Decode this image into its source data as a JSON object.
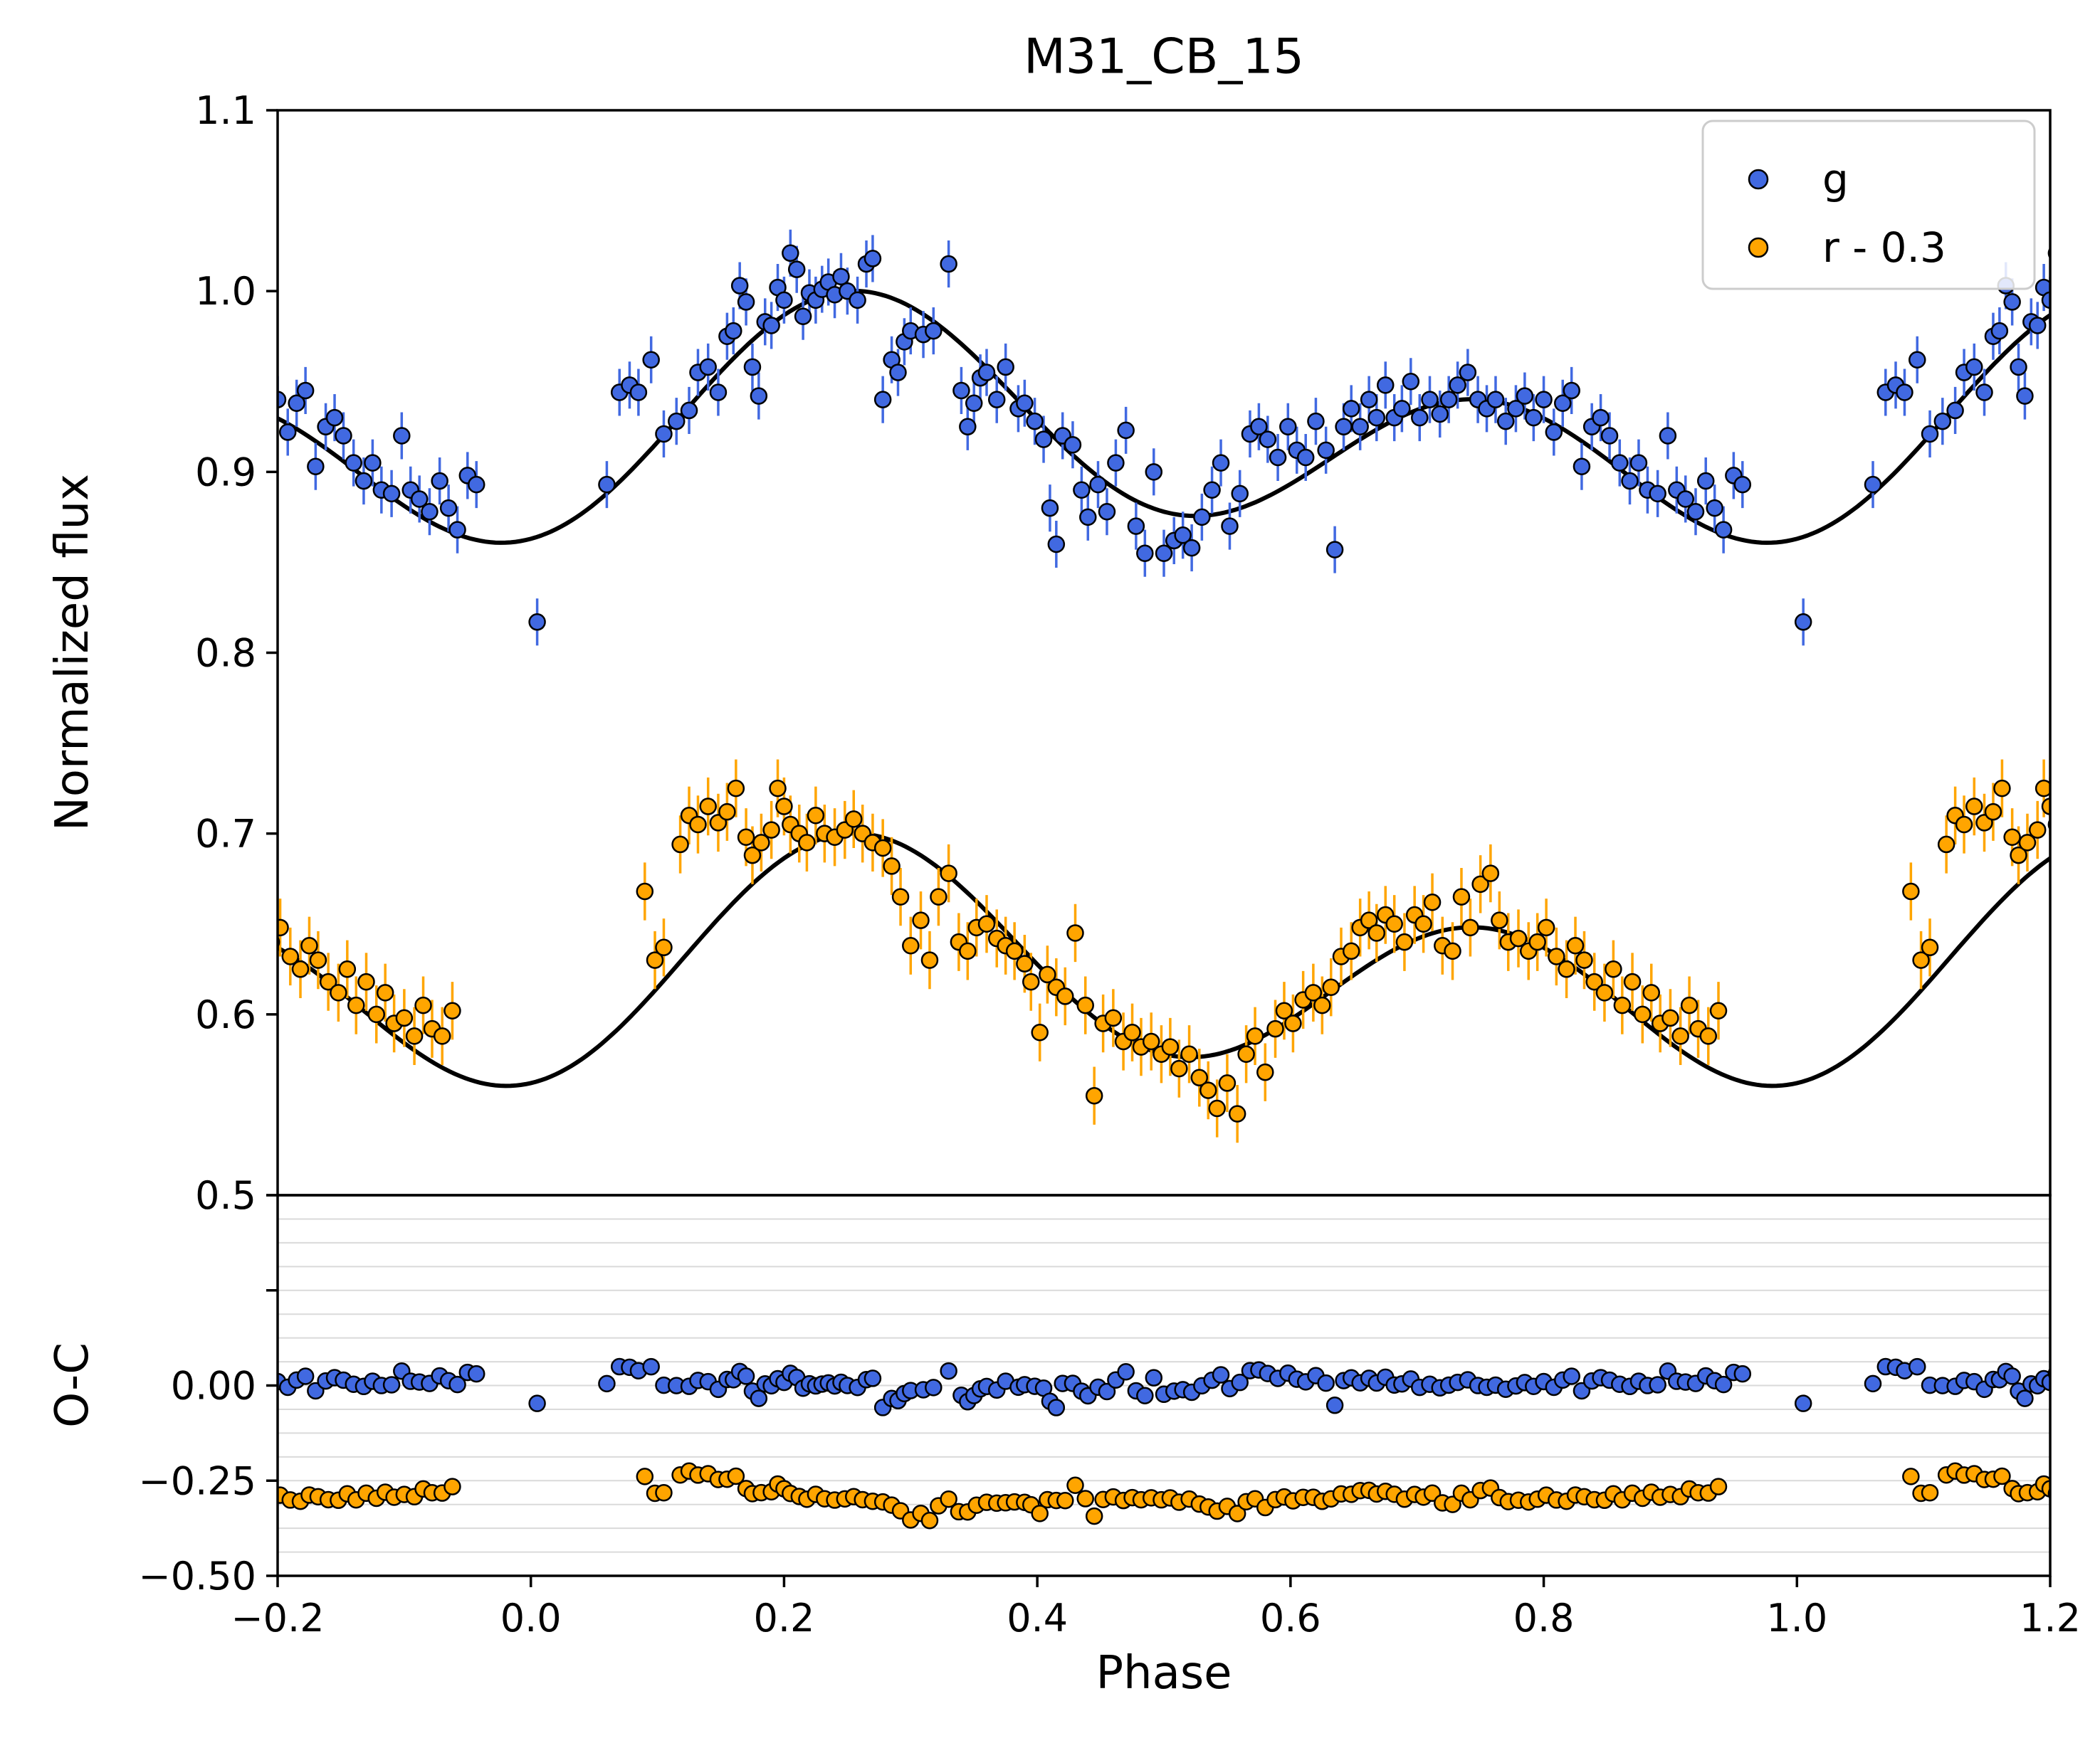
{
  "chart_data": {
    "type": "scatter",
    "title": "M31_CB_15",
    "xlabel": "Phase",
    "xlim": [
      -0.2,
      1.2
    ],
    "x_ticks": [
      {
        "v": -0.2,
        "label": "−0.2"
      },
      {
        "v": 0.0,
        "label": "0.0"
      },
      {
        "v": 0.2,
        "label": "0.2"
      },
      {
        "v": 0.4,
        "label": "0.4"
      },
      {
        "v": 0.6,
        "label": "0.6"
      },
      {
        "v": 0.8,
        "label": "0.8"
      },
      {
        "v": 1.0,
        "label": "1.0"
      },
      {
        "v": 1.2,
        "label": "1.2"
      }
    ],
    "panels": [
      {
        "name": "flux",
        "ylabel": "Normalized flux",
        "ylim": [
          0.5,
          1.1
        ],
        "y_ticks": [
          {
            "v": 1.1,
            "label": "1.1"
          },
          {
            "v": 1.0,
            "label": "1.0"
          },
          {
            "v": 0.9,
            "label": "0.9"
          },
          {
            "v": 0.8,
            "label": "0.8"
          },
          {
            "v": 0.7,
            "label": "0.7"
          },
          {
            "v": 0.6,
            "label": "0.6"
          },
          {
            "v": 0.5,
            "label": "0.5"
          }
        ]
      },
      {
        "name": "oc",
        "ylabel": "O-C",
        "ylim": [
          -0.5,
          0.5
        ],
        "y_ticks": [
          {
            "v": 0.0,
            "label": "0.00"
          },
          {
            "v": -0.25,
            "label": "−0.25"
          },
          {
            "v": -0.5,
            "label": "−0.50"
          }
        ],
        "extra_tick_values": [
          0.5,
          0.25
        ],
        "grid": {
          "step": 0.0625,
          "color": "#dadada"
        }
      }
    ],
    "legend": {
      "position": "upper right"
    },
    "model_color": "#000000",
    "fold_duplication": true,
    "series": [
      {
        "name": "g",
        "label": "g",
        "color": "#4169e1",
        "edge_color": "#000000",
        "err": 0.013,
        "residual_offset": 0,
        "model": {
          "a0": 0.92025,
          "s1": 0.03,
          "c1": -0.0075,
          "s2": 0,
          "c2": -0.04975
        },
        "points": [
          [
            0.005,
            0.817
          ],
          [
            0.06,
            0.893
          ],
          [
            0.07,
            0.944
          ],
          [
            0.078,
            0.948
          ],
          [
            0.085,
            0.944
          ],
          [
            0.095,
            0.962
          ],
          [
            0.105,
            0.921
          ],
          [
            0.115,
            0.928
          ],
          [
            0.125,
            0.934
          ],
          [
            0.132,
            0.955
          ],
          [
            0.14,
            0.958
          ],
          [
            0.148,
            0.944
          ],
          [
            0.155,
            0.975
          ],
          [
            0.16,
            0.978
          ],
          [
            0.165,
            1.003
          ],
          [
            0.17,
            0.994
          ],
          [
            0.175,
            0.958
          ],
          [
            0.18,
            0.942
          ],
          [
            0.185,
            0.983
          ],
          [
            0.19,
            0.981
          ],
          [
            0.195,
            1.002
          ],
          [
            0.2,
            0.995
          ],
          [
            0.205,
            1.021
          ],
          [
            0.21,
            1.012
          ],
          [
            0.215,
            0.986
          ],
          [
            0.22,
            0.999
          ],
          [
            0.225,
            0.995
          ],
          [
            0.23,
            1.001
          ],
          [
            0.235,
            1.005
          ],
          [
            0.24,
            0.998
          ],
          [
            0.245,
            1.008
          ],
          [
            0.25,
            1.0
          ],
          [
            0.258,
            0.995
          ],
          [
            0.265,
            1.015
          ],
          [
            0.27,
            1.018
          ],
          [
            0.278,
            0.94
          ],
          [
            0.285,
            0.962
          ],
          [
            0.29,
            0.955
          ],
          [
            0.295,
            0.972
          ],
          [
            0.3,
            0.978
          ],
          [
            0.31,
            0.976
          ],
          [
            0.318,
            0.978
          ],
          [
            0.33,
            1.015
          ],
          [
            0.34,
            0.945
          ],
          [
            0.345,
            0.925
          ],
          [
            0.35,
            0.938
          ],
          [
            0.355,
            0.952
          ],
          [
            0.36,
            0.955
          ],
          [
            0.368,
            0.94
          ],
          [
            0.375,
            0.958
          ],
          [
            0.385,
            0.935
          ],
          [
            0.39,
            0.938
          ],
          [
            0.398,
            0.928
          ],
          [
            0.405,
            0.918
          ],
          [
            0.41,
            0.88
          ],
          [
            0.415,
            0.86
          ],
          [
            0.42,
            0.92
          ],
          [
            0.428,
            0.915
          ],
          [
            0.435,
            0.89
          ],
          [
            0.44,
            0.875
          ],
          [
            0.448,
            0.893
          ],
          [
            0.455,
            0.878
          ],
          [
            0.462,
            0.905
          ],
          [
            0.47,
            0.923
          ],
          [
            0.478,
            0.87
          ],
          [
            0.485,
            0.855
          ],
          [
            0.492,
            0.9
          ],
          [
            0.5,
            0.855
          ],
          [
            0.508,
            0.862
          ],
          [
            0.515,
            0.865
          ],
          [
            0.522,
            0.858
          ],
          [
            0.53,
            0.875
          ],
          [
            0.538,
            0.89
          ],
          [
            0.545,
            0.905
          ],
          [
            0.552,
            0.87
          ],
          [
            0.56,
            0.888
          ],
          [
            0.568,
            0.921
          ],
          [
            0.575,
            0.925
          ],
          [
            0.582,
            0.918
          ],
          [
            0.59,
            0.908
          ],
          [
            0.598,
            0.925
          ],
          [
            0.605,
            0.912
          ],
          [
            0.612,
            0.908
          ],
          [
            0.62,
            0.928
          ],
          [
            0.628,
            0.912
          ],
          [
            0.635,
            0.857
          ],
          [
            0.642,
            0.925
          ],
          [
            0.648,
            0.935
          ],
          [
            0.655,
            0.925
          ],
          [
            0.662,
            0.94
          ],
          [
            0.668,
            0.93
          ],
          [
            0.675,
            0.948
          ],
          [
            0.682,
            0.93
          ],
          [
            0.688,
            0.935
          ],
          [
            0.695,
            0.95
          ],
          [
            0.702,
            0.93
          ],
          [
            0.71,
            0.94
          ],
          [
            0.718,
            0.932
          ],
          [
            0.725,
            0.94
          ],
          [
            0.732,
            0.948
          ],
          [
            0.74,
            0.955
          ],
          [
            0.748,
            0.94
          ],
          [
            0.755,
            0.935
          ],
          [
            0.762,
            0.94
          ],
          [
            0.77,
            0.928
          ],
          [
            0.778,
            0.935
          ],
          [
            0.785,
            0.942
          ],
          [
            0.792,
            0.93
          ],
          [
            0.8,
            0.94
          ],
          [
            0.808,
            0.922
          ],
          [
            0.815,
            0.938
          ],
          [
            0.822,
            0.945
          ],
          [
            0.83,
            0.903
          ],
          [
            0.838,
            0.925
          ],
          [
            0.845,
            0.93
          ],
          [
            0.852,
            0.92
          ],
          [
            0.86,
            0.905
          ],
          [
            0.868,
            0.895
          ],
          [
            0.875,
            0.905
          ],
          [
            0.882,
            0.89
          ],
          [
            0.89,
            0.888
          ],
          [
            0.898,
            0.92
          ],
          [
            0.905,
            0.89
          ],
          [
            0.912,
            0.885
          ],
          [
            0.92,
            0.878
          ],
          [
            0.928,
            0.895
          ],
          [
            0.935,
            0.88
          ],
          [
            0.942,
            0.868
          ],
          [
            0.95,
            0.898
          ],
          [
            0.957,
            0.893
          ]
        ]
      },
      {
        "name": "r",
        "label": "r - 0.3",
        "color": "#ffa500",
        "edge_color": "#000000",
        "err": 0.016,
        "residual_offset": -0.3,
        "model": {
          "a0": 0.622,
          "s1": 0.026,
          "c1": -0.008,
          "s2": 0,
          "c2": -0.052
        },
        "points": [
          [
            0.09,
            0.668
          ],
          [
            0.098,
            0.63
          ],
          [
            0.105,
            0.637
          ],
          [
            0.118,
            0.694
          ],
          [
            0.125,
            0.71
          ],
          [
            0.132,
            0.705
          ],
          [
            0.14,
            0.715
          ],
          [
            0.148,
            0.706
          ],
          [
            0.155,
            0.712
          ],
          [
            0.162,
            0.725
          ],
          [
            0.17,
            0.698
          ],
          [
            0.175,
            0.688
          ],
          [
            0.182,
            0.695
          ],
          [
            0.19,
            0.702
          ],
          [
            0.195,
            0.725
          ],
          [
            0.2,
            0.715
          ],
          [
            0.205,
            0.705
          ],
          [
            0.212,
            0.7
          ],
          [
            0.218,
            0.695
          ],
          [
            0.225,
            0.71
          ],
          [
            0.232,
            0.7
          ],
          [
            0.24,
            0.698
          ],
          [
            0.248,
            0.702
          ],
          [
            0.255,
            0.708
          ],
          [
            0.262,
            0.7
          ],
          [
            0.27,
            0.695
          ],
          [
            0.278,
            0.692
          ],
          [
            0.285,
            0.682
          ],
          [
            0.292,
            0.665
          ],
          [
            0.3,
            0.638
          ],
          [
            0.308,
            0.652
          ],
          [
            0.315,
            0.63
          ],
          [
            0.322,
            0.665
          ],
          [
            0.33,
            0.678
          ],
          [
            0.338,
            0.64
          ],
          [
            0.345,
            0.635
          ],
          [
            0.352,
            0.648
          ],
          [
            0.36,
            0.65
          ],
          [
            0.368,
            0.642
          ],
          [
            0.375,
            0.638
          ],
          [
            0.382,
            0.635
          ],
          [
            0.39,
            0.628
          ],
          [
            0.395,
            0.618
          ],
          [
            0.402,
            0.59
          ],
          [
            0.408,
            0.622
          ],
          [
            0.415,
            0.615
          ],
          [
            0.422,
            0.61
          ],
          [
            0.43,
            0.645
          ],
          [
            0.438,
            0.605
          ],
          [
            0.445,
            0.555
          ],
          [
            0.452,
            0.595
          ],
          [
            0.46,
            0.598
          ],
          [
            0.468,
            0.585
          ],
          [
            0.475,
            0.59
          ],
          [
            0.482,
            0.582
          ],
          [
            0.49,
            0.585
          ],
          [
            0.498,
            0.578
          ],
          [
            0.505,
            0.582
          ],
          [
            0.512,
            0.57
          ],
          [
            0.52,
            0.578
          ],
          [
            0.528,
            0.565
          ],
          [
            0.535,
            0.558
          ],
          [
            0.542,
            0.548
          ],
          [
            0.55,
            0.562
          ],
          [
            0.558,
            0.545
          ],
          [
            0.565,
            0.578
          ],
          [
            0.572,
            0.588
          ],
          [
            0.58,
            0.568
          ],
          [
            0.588,
            0.592
          ],
          [
            0.595,
            0.602
          ],
          [
            0.602,
            0.595
          ],
          [
            0.61,
            0.608
          ],
          [
            0.618,
            0.612
          ],
          [
            0.625,
            0.605
          ],
          [
            0.632,
            0.615
          ],
          [
            0.64,
            0.632
          ],
          [
            0.648,
            0.635
          ],
          [
            0.655,
            0.648
          ],
          [
            0.662,
            0.652
          ],
          [
            0.668,
            0.645
          ],
          [
            0.675,
            0.655
          ],
          [
            0.682,
            0.65
          ],
          [
            0.69,
            0.64
          ],
          [
            0.698,
            0.655
          ],
          [
            0.705,
            0.65
          ],
          [
            0.712,
            0.662
          ],
          [
            0.72,
            0.638
          ],
          [
            0.728,
            0.635
          ],
          [
            0.735,
            0.665
          ],
          [
            0.742,
            0.648
          ],
          [
            0.75,
            0.672
          ],
          [
            0.758,
            0.678
          ],
          [
            0.765,
            0.652
          ],
          [
            0.772,
            0.64
          ],
          [
            0.78,
            0.642
          ],
          [
            0.788,
            0.635
          ],
          [
            0.795,
            0.64
          ],
          [
            0.802,
            0.648
          ],
          [
            0.81,
            0.632
          ],
          [
            0.818,
            0.625
          ],
          [
            0.825,
            0.638
          ],
          [
            0.832,
            0.63
          ],
          [
            0.84,
            0.618
          ],
          [
            0.848,
            0.612
          ],
          [
            0.855,
            0.625
          ],
          [
            0.862,
            0.605
          ],
          [
            0.87,
            0.618
          ],
          [
            0.878,
            0.6
          ],
          [
            0.885,
            0.612
          ],
          [
            0.892,
            0.595
          ],
          [
            0.9,
            0.598
          ],
          [
            0.908,
            0.588
          ],
          [
            0.915,
            0.605
          ],
          [
            0.922,
            0.592
          ],
          [
            0.93,
            0.588
          ],
          [
            0.938,
            0.602
          ]
        ]
      }
    ]
  }
}
